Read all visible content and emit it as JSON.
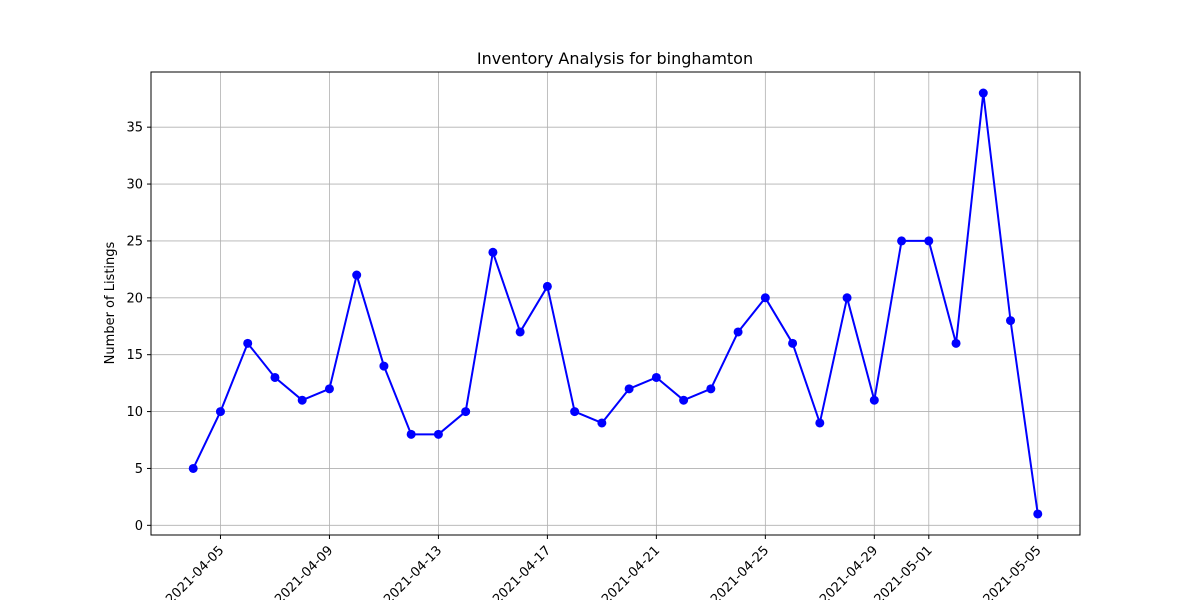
{
  "chart_data": {
    "type": "line",
    "title": "Inventory Analysis for binghamton",
    "xlabel": "",
    "ylabel": "Number of Listings",
    "grid": true,
    "line_color": "#0000ff",
    "marker": "circle",
    "x": [
      "2021-04-04",
      "2021-04-05",
      "2021-04-06",
      "2021-04-07",
      "2021-04-08",
      "2021-04-09",
      "2021-04-10",
      "2021-04-11",
      "2021-04-12",
      "2021-04-13",
      "2021-04-14",
      "2021-04-15",
      "2021-04-16",
      "2021-04-17",
      "2021-04-18",
      "2021-04-19",
      "2021-04-20",
      "2021-04-21",
      "2021-04-22",
      "2021-04-23",
      "2021-04-24",
      "2021-04-25",
      "2021-04-26",
      "2021-04-27",
      "2021-04-28",
      "2021-04-29",
      "2021-04-30",
      "2021-05-01",
      "2021-05-02",
      "2021-05-03",
      "2021-05-04",
      "2021-05-05"
    ],
    "values": [
      5,
      10,
      16,
      13,
      11,
      12,
      22,
      14,
      8,
      8,
      10,
      24,
      17,
      21,
      10,
      9,
      12,
      13,
      11,
      12,
      17,
      20,
      16,
      9,
      20,
      11,
      25,
      25,
      16,
      38,
      18,
      1
    ],
    "x_ticks": [
      "2021-04-05",
      "2021-04-09",
      "2021-04-13",
      "2021-04-17",
      "2021-04-21",
      "2021-04-25",
      "2021-04-29",
      "2021-05-01",
      "2021-05-05"
    ],
    "y_ticks": [
      0,
      5,
      10,
      15,
      20,
      25,
      30,
      35
    ],
    "ylim": [
      -0.85,
      39.85
    ]
  }
}
